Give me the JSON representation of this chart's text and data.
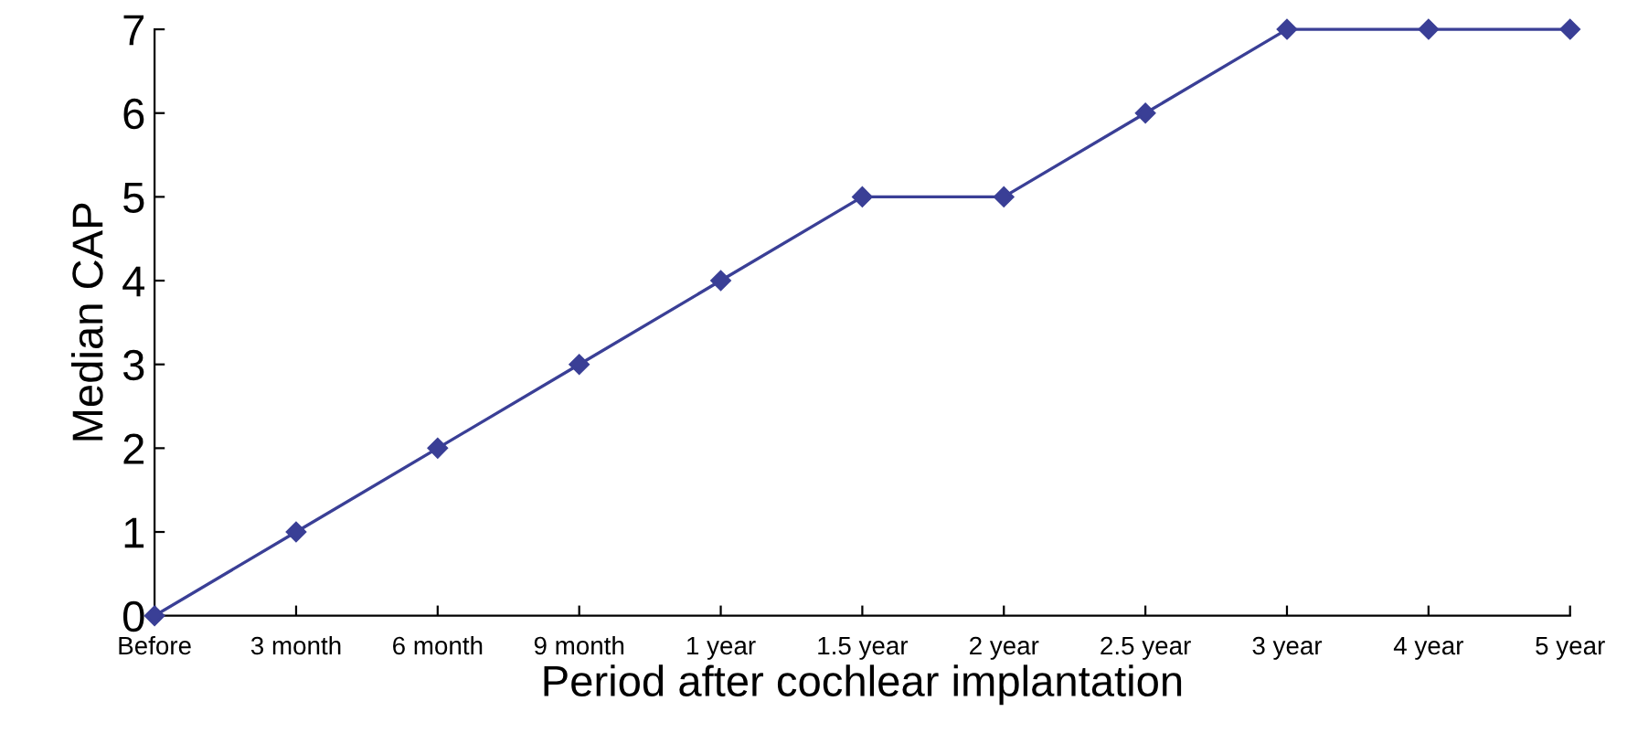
{
  "chart_data": {
    "type": "line",
    "xlabel": "Period after cochlear implantation",
    "ylabel": "Median CAP",
    "categories": [
      "Before",
      "3 month",
      "6 month",
      "9 month",
      "1 year",
      "1.5 year",
      "2 year",
      "2.5 year",
      "3 year",
      "4 year",
      "5 year"
    ],
    "series": [
      {
        "color": "#3a3f96",
        "values": [
          0,
          1,
          2,
          3,
          4,
          5,
          5,
          6,
          7,
          7,
          7
        ]
      }
    ],
    "ylim": [
      0,
      7
    ],
    "yticks": [
      0,
      1,
      2,
      3,
      4,
      5,
      6,
      7
    ],
    "grid": false,
    "legend": false,
    "marker": "diamond",
    "line_style": "solid"
  }
}
